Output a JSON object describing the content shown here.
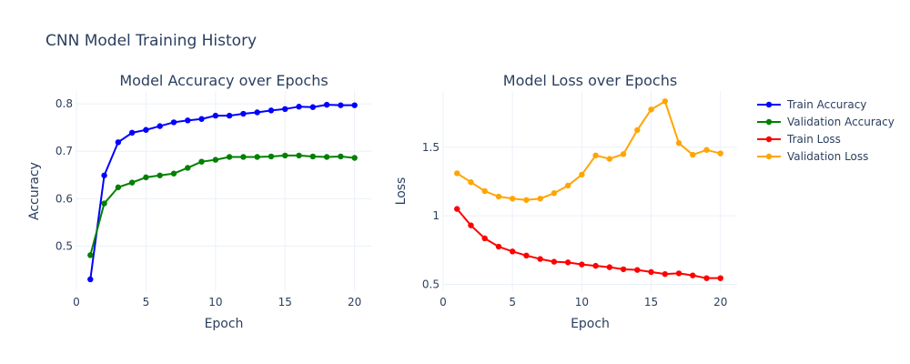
{
  "figure": {
    "title": "CNN Model Training History"
  },
  "chart_data": [
    {
      "type": "line",
      "title": "Model Accuracy over Epochs",
      "xlabel": "Epoch",
      "ylabel": "Accuracy",
      "xlim": [
        0,
        21.2
      ],
      "ylim": [
        0.405,
        0.827
      ],
      "xticks": [
        0,
        5,
        10,
        15,
        20
      ],
      "yticks": [
        0.5,
        0.6,
        0.7,
        0.8
      ],
      "ytick_labels": [
        "0.5",
        "0.6",
        "0.7",
        "0.8"
      ],
      "grid": true,
      "x": [
        1,
        2,
        3,
        4,
        5,
        6,
        7,
        8,
        9,
        10,
        11,
        12,
        13,
        14,
        15,
        16,
        17,
        18,
        19,
        20
      ],
      "series": [
        {
          "name": "Train Accuracy",
          "color": "#0000ff",
          "values": [
            0.43,
            0.649,
            0.719,
            0.739,
            0.745,
            0.753,
            0.761,
            0.765,
            0.768,
            0.775,
            0.775,
            0.779,
            0.782,
            0.786,
            0.789,
            0.794,
            0.793,
            0.798,
            0.797,
            0.797
          ]
        },
        {
          "name": "Validation Accuracy",
          "color": "#008000",
          "values": [
            0.481,
            0.59,
            0.624,
            0.634,
            0.645,
            0.649,
            0.653,
            0.665,
            0.678,
            0.682,
            0.688,
            0.688,
            0.688,
            0.689,
            0.691,
            0.691,
            0.689,
            0.688,
            0.689,
            0.686
          ]
        }
      ]
    },
    {
      "type": "line",
      "title": "Model Loss over Epochs",
      "xlabel": "Epoch",
      "ylabel": "Loss",
      "xlim": [
        0,
        21.2
      ],
      "ylim": [
        0.45,
        1.91
      ],
      "xticks": [
        0,
        5,
        10,
        15,
        20
      ],
      "yticks": [
        0.5,
        1,
        1.5
      ],
      "ytick_labels": [
        "0.5",
        "1",
        "1.5"
      ],
      "grid": true,
      "x": [
        1,
        2,
        3,
        4,
        5,
        6,
        7,
        8,
        9,
        10,
        11,
        12,
        13,
        14,
        15,
        16,
        17,
        18,
        19,
        20
      ],
      "series": [
        {
          "name": "Train Loss",
          "color": "#ff0000",
          "values": [
            1.05,
            0.93,
            0.835,
            0.775,
            0.74,
            0.71,
            0.685,
            0.665,
            0.66,
            0.645,
            0.635,
            0.625,
            0.61,
            0.605,
            0.59,
            0.575,
            0.58,
            0.565,
            0.545,
            0.545
          ]
        },
        {
          "name": "Validation Loss",
          "color": "#ffa500",
          "values": [
            1.31,
            1.245,
            1.18,
            1.14,
            1.125,
            1.115,
            1.125,
            1.165,
            1.22,
            1.3,
            1.44,
            1.415,
            1.45,
            1.625,
            1.775,
            1.835,
            1.53,
            1.445,
            1.48,
            1.455
          ]
        }
      ]
    }
  ],
  "legend": {
    "placement": "right",
    "items": [
      {
        "label": "Train Accuracy",
        "color": "#0000ff"
      },
      {
        "label": "Validation Accuracy",
        "color": "#008000"
      },
      {
        "label": "Train Loss",
        "color": "#ff0000"
      },
      {
        "label": "Validation Loss",
        "color": "#ffa500"
      }
    ]
  }
}
